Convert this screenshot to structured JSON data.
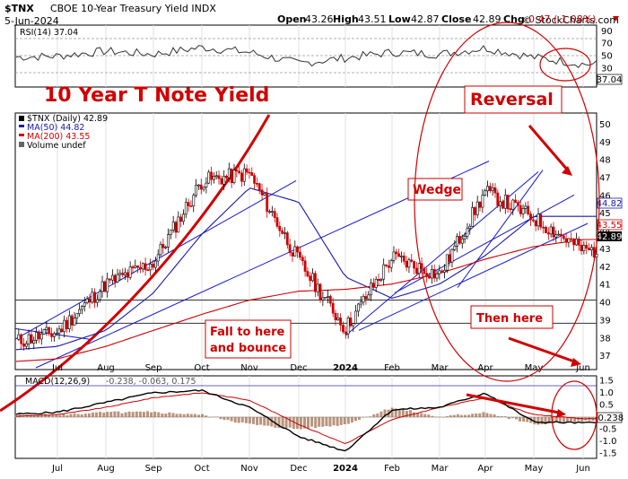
{
  "header": {
    "symbol": "$TNX",
    "name": "CBOE 10-Year Treasury Yield INDX",
    "date": "5-Jun-2024",
    "watermark": "© StockCharts.com",
    "open_label": "Open",
    "open": "43.26",
    "high_label": "High",
    "high": "43.51",
    "low_label": "Low",
    "low": "42.87",
    "close_label": "Close",
    "close": "42.89",
    "chg_label": "Chg",
    "chg": "-0.47 (-1.08%)"
  },
  "rsi_panel": {
    "legend": "RSI(14) 37.04",
    "last_value": "37.04",
    "ticks": [
      "90",
      "70",
      "50",
      "30",
      "10"
    ]
  },
  "price_panel": {
    "legend_main": "$TNX (Daily) 42.89",
    "legend_ma50": "MA(50) 44.82",
    "legend_ma200": "MA(200) 43.55",
    "legend_volume": "Volume undef",
    "ma50_value": "44.82",
    "ma200_value": "43.55",
    "last_value": "42.89",
    "y_ticks": [
      "50",
      "49",
      "48",
      "47",
      "46",
      "45",
      "44",
      "43",
      "42",
      "41",
      "40",
      "39",
      "38",
      "37"
    ]
  },
  "macd_panel": {
    "legend_label": "MACD(12,26,9)",
    "legend_values": "-0.238, -0.063, 0.175",
    "last_value": "-0.238",
    "ticks": [
      "1.5",
      "1.0",
      "0.5",
      "0.0",
      "-0.5",
      "-1.0",
      "-1.5"
    ]
  },
  "x_labels": [
    "Jul",
    "Aug",
    "Sep",
    "Oct",
    "Nov",
    "Dec",
    "2024",
    "Feb",
    "Mar",
    "Apr",
    "May",
    "Jun"
  ],
  "annotations": {
    "title": "10 Year T Note Yield",
    "reversal": "Reversal",
    "wedge": "Wedge",
    "fall_line1": "Fall to here",
    "fall_line2": "and bounce",
    "then_here": "Then here"
  },
  "colors": {
    "price": "#000000",
    "up": "#000000",
    "down": "#cc0000",
    "ma50": "#1a1aa6",
    "ma200": "#cc0000",
    "annotation": "#d00000",
    "trendline": "#1515d0",
    "macd_hist": "#a07050"
  },
  "chart_data": [
    {
      "type": "line",
      "panel": "RSI(14)",
      "x": [
        "Jul",
        "Aug",
        "Sep",
        "Oct",
        "Nov",
        "Dec",
        "2024",
        "Feb",
        "Mar",
        "Apr",
        "May",
        "Jun"
      ],
      "series": [
        {
          "name": "RSI(14)",
          "values": [
            50,
            58,
            53,
            64,
            56,
            38,
            47,
            56,
            53,
            63,
            48,
            37
          ]
        }
      ],
      "ylim": [
        0,
        100
      ]
    },
    {
      "type": "line",
      "panel": "$TNX (Daily)",
      "x": [
        "Jul",
        "Aug",
        "Sep",
        "Oct",
        "Nov",
        "Dec",
        "2024",
        "Feb",
        "Mar",
        "Apr",
        "May",
        "Jun"
      ],
      "series": [
        {
          "name": "$TNX (Daily)",
          "values": [
            38.3,
            41.0,
            42.2,
            46.8,
            47.2,
            42.3,
            38.5,
            42.5,
            41.5,
            46.2,
            44.7,
            42.9
          ]
        },
        {
          "name": "MA(50)",
          "values": [
            37.5,
            38.4,
            40.5,
            43.8,
            46.4,
            45.6,
            41.4,
            40.2,
            41.0,
            42.6,
            44.8,
            44.8
          ]
        },
        {
          "name": "MA(200)",
          "values": [
            36.8,
            37.5,
            38.4,
            39.3,
            40.1,
            40.6,
            40.7,
            41.0,
            41.6,
            42.4,
            43.1,
            43.5
          ]
        }
      ],
      "ylim": [
        36.2,
        50.6
      ],
      "horizontal_lines": [
        40.1,
        38.8
      ]
    },
    {
      "type": "line",
      "panel": "MACD(12,26,9)",
      "x": [
        "Jul",
        "Aug",
        "Sep",
        "Oct",
        "Nov",
        "Dec",
        "2024",
        "Feb",
        "Mar",
        "Apr",
        "May",
        "Jun"
      ],
      "series": [
        {
          "name": "MACD",
          "values": [
            0.2,
            0.6,
            1.0,
            1.1,
            0.4,
            -0.8,
            -1.4,
            0.3,
            0.4,
            1.0,
            -0.2,
            -0.238
          ]
        },
        {
          "name": "Signal",
          "values": [
            0.1,
            0.4,
            0.8,
            1.0,
            0.7,
            -0.3,
            -1.1,
            -0.1,
            0.4,
            0.8,
            0.1,
            -0.063
          ]
        }
      ],
      "ylim": [
        -1.7,
        1.7
      ]
    }
  ]
}
